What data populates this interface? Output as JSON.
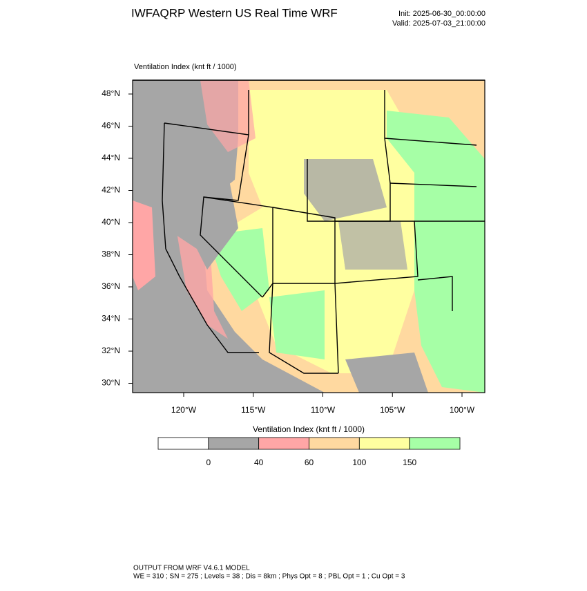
{
  "header": {
    "title": "IWFAQRP Western US Real Time WRF",
    "init": "Init: 2025-06-30_00:00:00",
    "valid": "Valid: 2025-07-03_21:00:00"
  },
  "map": {
    "label": "Ventilation Index   (knt ft / 1000)",
    "lat_ticks": [
      {
        "value": 48,
        "label": "48°N"
      },
      {
        "value": 46,
        "label": "46°N"
      },
      {
        "value": 44,
        "label": "44°N"
      },
      {
        "value": 42,
        "label": "42°N"
      },
      {
        "value": 40,
        "label": "40°N"
      },
      {
        "value": 38,
        "label": "38°N"
      },
      {
        "value": 36,
        "label": "36°N"
      },
      {
        "value": 34,
        "label": "34°N"
      },
      {
        "value": 32,
        "label": "32°N"
      },
      {
        "value": 30,
        "label": "30°N"
      }
    ],
    "lon_ticks": [
      {
        "value": -120,
        "label": "120°W"
      },
      {
        "value": -115,
        "label": "115°W"
      },
      {
        "value": -110,
        "label": "110°W"
      },
      {
        "value": -105,
        "label": "105°W"
      },
      {
        "value": -100,
        "label": "100°W"
      }
    ]
  },
  "colorbar": {
    "title": "Ventilation Index   (knt ft / 1000)",
    "colors": [
      "#ffffff",
      "#a6a6a6",
      "#ffa6a6",
      "#ffd9a0",
      "#ffffa0",
      "#a6ffa6"
    ],
    "ticks": [
      0,
      40,
      60,
      100,
      150
    ]
  },
  "footer": {
    "line1": "OUTPUT FROM WRF V4.6.1 MODEL",
    "line2": "WE = 310 ; SN = 275 ; Levels = 38 ; Dis = 8km ; Phys Opt = 8 ; PBL Opt = 1 ; Cu Opt = 3"
  }
}
